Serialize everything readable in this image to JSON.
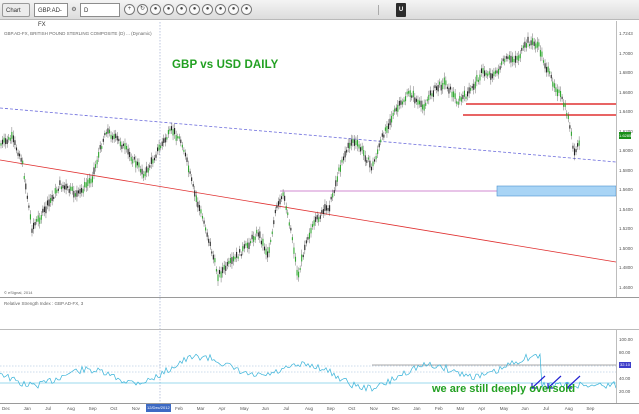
{
  "toolbar": {
    "chart_tab": "Chart",
    "symbol": "GBP.AD-FX",
    "lock_glyph": "⚙",
    "period": "D",
    "round_button_glyphs": [
      "+",
      "↻",
      "●",
      "●",
      "●",
      "●",
      "●",
      "●",
      "●",
      "●"
    ],
    "brand_letter": "U"
  },
  "chart_header": "GBP.AD-FX, BRITISH POUND STERLING COMPOSITE (D) ... (Dynamic)",
  "chart_title": "GBP vs USD DAILY",
  "copyright": "© eSignal, 2014",
  "rsi_header": "Relative Strength Index : GBP.AD-FX, 3",
  "oversold_note": "we are still deeply oversold",
  "price_axis": [
    "1.7243",
    "1.7000",
    "1.6800",
    "1.6600",
    "1.6400",
    "1.6200",
    "1.6000",
    "1.5800",
    "1.5600",
    "1.5400",
    "1.5200",
    "1.5000",
    "1.4800",
    "1.4600"
  ],
  "last_price": "1.6285",
  "rsi_axis": [
    "100.00",
    "80.00",
    "60.00",
    "40.00",
    "20.00"
  ],
  "rsi_value": "32.10",
  "time_axis": [
    "Dec",
    "Jan",
    "Jul",
    "Aug",
    "Sep",
    "Oct",
    "Nov",
    "Dec",
    "Feb",
    "Mar",
    "Apr",
    "May",
    "Jun",
    "Jul",
    "Aug",
    "Sep",
    "Oct",
    "Nov",
    "Dec",
    "Jan",
    "Feb",
    "Mar",
    "Apr",
    "May",
    "Jun",
    "Jul",
    "Aug",
    "Sep"
  ],
  "highlighted_date": "12/Dec/2012",
  "colors": {
    "title_green": "#22a022",
    "trend_red": "#e03030",
    "dashed_blue": "#6b6bdc",
    "support_box": "#a8d4f5",
    "magenta_line": "#c060c0",
    "candle_up": "#2fa82f",
    "candle_down": "#222222",
    "rsi_line": "#39b3d9",
    "arrow_blue": "#2020d0"
  }
}
